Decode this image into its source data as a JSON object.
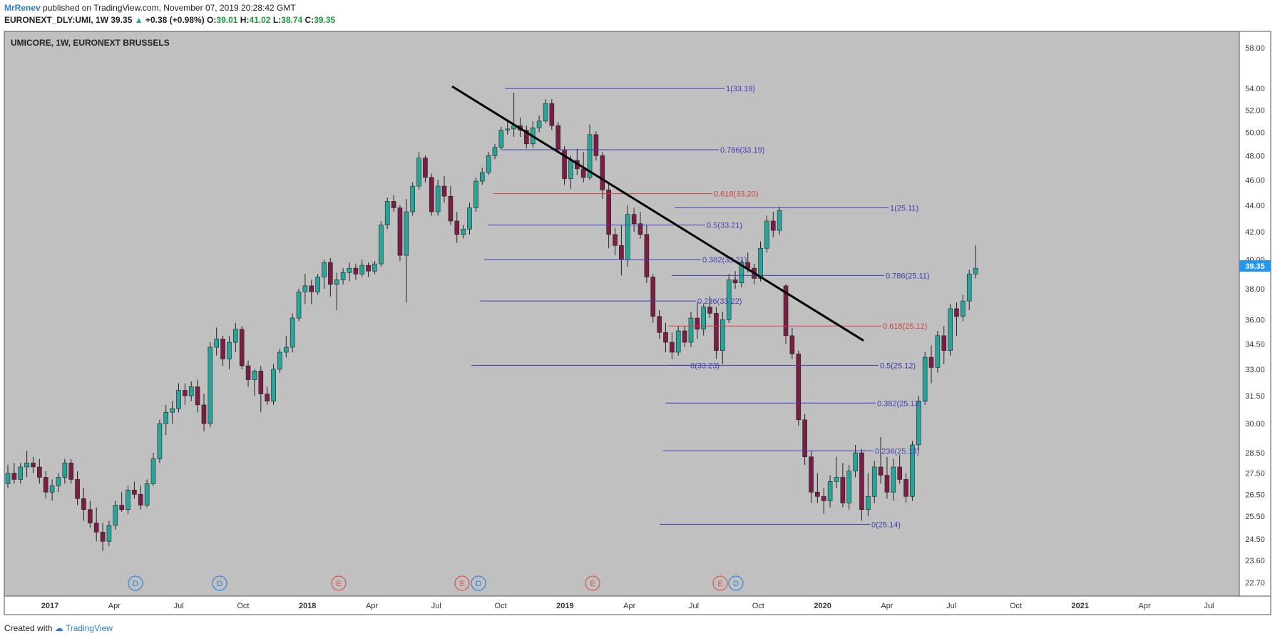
{
  "header": {
    "user": "MrRenev",
    "published": "published on TradingView.com, November 07, 2019 20:28:42 GMT",
    "symbol_line": "EURONEXT_DLY:UMI, 1W",
    "price": "39.35",
    "change": "+0.38 (+0.98%)",
    "o_label": "O:",
    "o": "39.01",
    "h_label": "H:",
    "h": "41.02",
    "l_label": "L:",
    "l": "38.74",
    "c_label": "C:",
    "c": "39.35"
  },
  "footer": {
    "created_with": "Created with",
    "brand": "TradingView"
  },
  "colors": {
    "bull": "#26a69a",
    "bear": "#7b1e46",
    "plot_bg": "#c0c0c0",
    "fib_line": "#3f3fb0",
    "fib_618": "#d04040",
    "last_price_tag": "#2196f3"
  },
  "chart_data": {
    "type": "candlestick",
    "title": "UMICORE, 1W, EURONEXT BRUSSELS",
    "y_ticks": [
      "58.00",
      "54.00",
      "52.00",
      "50.00",
      "48.00",
      "46.00",
      "44.00",
      "42.00",
      "40.00",
      "38.00",
      "36.00",
      "34.50",
      "33.00",
      "31.50",
      "30.00",
      "28.50",
      "27.50",
      "26.50",
      "25.50",
      "24.50",
      "23.60",
      "22.70"
    ],
    "y_scale": "log",
    "x_ticks": [
      "2017",
      "Apr",
      "Jul",
      "Oct",
      "2018",
      "Apr",
      "Jul",
      "Oct",
      "2019",
      "Apr",
      "Jul",
      "Oct",
      "2020",
      "Apr",
      "Jul",
      "Oct",
      "2021",
      "Apr",
      "Jul"
    ],
    "last_price": "39.35",
    "ohlc": [
      [
        27.0,
        27.9,
        26.8,
        27.5
      ],
      [
        27.5,
        28.0,
        27.0,
        27.2
      ],
      [
        27.2,
        28.0,
        27.0,
        27.8
      ],
      [
        27.8,
        28.6,
        27.3,
        28.0
      ],
      [
        28.0,
        28.3,
        27.5,
        27.8
      ],
      [
        27.8,
        28.2,
        27.0,
        27.3
      ],
      [
        27.3,
        27.6,
        26.3,
        26.6
      ],
      [
        26.6,
        27.2,
        26.2,
        26.9
      ],
      [
        26.9,
        27.5,
        26.6,
        27.3
      ],
      [
        27.3,
        28.2,
        27.0,
        28.0
      ],
      [
        28.0,
        28.2,
        27.0,
        27.2
      ],
      [
        27.2,
        27.6,
        26.0,
        26.3
      ],
      [
        26.3,
        26.8,
        25.3,
        25.8
      ],
      [
        25.8,
        26.2,
        25.0,
        25.2
      ],
      [
        25.2,
        25.9,
        24.4,
        24.8
      ],
      [
        24.8,
        25.2,
        24.0,
        24.4
      ],
      [
        24.4,
        25.3,
        24.2,
        25.1
      ],
      [
        25.1,
        26.2,
        24.9,
        26.0
      ],
      [
        26.0,
        26.6,
        25.7,
        25.8
      ],
      [
        25.8,
        26.9,
        25.6,
        26.7
      ],
      [
        26.7,
        27.1,
        26.3,
        26.5
      ],
      [
        26.5,
        26.9,
        25.8,
        26.0
      ],
      [
        26.0,
        27.2,
        25.9,
        27.0
      ],
      [
        27.0,
        28.5,
        26.9,
        28.2
      ],
      [
        28.2,
        30.2,
        28.0,
        30.0
      ],
      [
        30.0,
        31.0,
        29.4,
        30.6
      ],
      [
        30.6,
        31.2,
        30.0,
        30.8
      ],
      [
        30.8,
        32.2,
        30.6,
        31.8
      ],
      [
        31.8,
        32.2,
        31.0,
        31.5
      ],
      [
        31.5,
        32.3,
        31.2,
        32.0
      ],
      [
        32.0,
        32.4,
        30.6,
        31.0
      ],
      [
        31.0,
        31.6,
        29.6,
        30.0
      ],
      [
        30.0,
        34.6,
        29.8,
        34.3
      ],
      [
        34.3,
        35.5,
        33.8,
        34.8
      ],
      [
        34.8,
        35.0,
        33.2,
        33.6
      ],
      [
        33.6,
        35.0,
        33.0,
        34.6
      ],
      [
        34.6,
        35.8,
        34.0,
        35.4
      ],
      [
        35.4,
        35.6,
        33.0,
        33.2
      ],
      [
        33.2,
        33.5,
        32.0,
        32.4
      ],
      [
        32.4,
        33.0,
        31.5,
        32.9
      ],
      [
        32.9,
        33.2,
        30.6,
        31.6
      ],
      [
        31.6,
        32.0,
        31.0,
        31.2
      ],
      [
        31.2,
        33.3,
        31.0,
        33.0
      ],
      [
        33.0,
        34.2,
        32.8,
        34.0
      ],
      [
        34.0,
        35.0,
        33.7,
        34.3
      ],
      [
        34.3,
        36.4,
        34.0,
        36.1
      ],
      [
        36.1,
        38.0,
        35.9,
        37.8
      ],
      [
        37.8,
        39.0,
        37.0,
        38.2
      ],
      [
        38.2,
        38.6,
        37.0,
        37.8
      ],
      [
        37.8,
        39.0,
        37.6,
        38.8
      ],
      [
        38.8,
        40.0,
        38.0,
        39.8
      ],
      [
        39.8,
        40.1,
        37.5,
        38.3
      ],
      [
        38.3,
        39.1,
        36.6,
        38.6
      ],
      [
        38.6,
        39.4,
        38.3,
        39.1
      ],
      [
        39.1,
        39.8,
        38.5,
        39.4
      ],
      [
        39.4,
        39.7,
        38.6,
        39.0
      ],
      [
        39.0,
        40.0,
        38.8,
        39.6
      ],
      [
        39.6,
        39.8,
        38.8,
        39.2
      ],
      [
        39.2,
        39.9,
        39.0,
        39.7
      ],
      [
        39.7,
        42.8,
        39.5,
        42.5
      ],
      [
        42.5,
        44.6,
        42.2,
        44.3
      ],
      [
        44.3,
        44.8,
        43.5,
        43.8
      ],
      [
        43.8,
        44.0,
        39.9,
        40.3
      ],
      [
        40.3,
        44.5,
        37.1,
        43.5
      ],
      [
        43.5,
        45.8,
        43.2,
        45.5
      ],
      [
        45.5,
        48.3,
        45.2,
        47.8
      ],
      [
        47.8,
        48.0,
        45.8,
        46.2
      ],
      [
        46.2,
        46.5,
        43.2,
        43.5
      ],
      [
        43.5,
        46.0,
        43.2,
        45.5
      ],
      [
        45.5,
        46.3,
        44.2,
        44.7
      ],
      [
        44.7,
        45.5,
        42.5,
        42.8
      ],
      [
        42.8,
        43.5,
        41.2,
        41.8
      ],
      [
        41.8,
        42.5,
        41.5,
        42.2
      ],
      [
        42.2,
        44.2,
        41.8,
        43.8
      ],
      [
        43.8,
        46.2,
        43.5,
        45.9
      ],
      [
        45.9,
        47.0,
        45.6,
        46.6
      ],
      [
        46.6,
        48.3,
        46.4,
        48.0
      ],
      [
        48.0,
        49.0,
        47.7,
        48.7
      ],
      [
        48.7,
        50.5,
        48.5,
        50.2
      ],
      [
        50.2,
        51.0,
        49.8,
        50.3
      ],
      [
        50.3,
        53.6,
        49.6,
        50.6
      ],
      [
        50.6,
        51.3,
        49.6,
        50.2
      ],
      [
        50.2,
        50.6,
        48.6,
        49.0
      ],
      [
        49.0,
        51.0,
        48.7,
        50.4
      ],
      [
        50.4,
        51.5,
        50.0,
        51.0
      ],
      [
        51.0,
        53.0,
        50.8,
        52.6
      ],
      [
        52.6,
        53.0,
        50.2,
        50.6
      ],
      [
        50.6,
        50.9,
        48.2,
        48.5
      ],
      [
        48.5,
        48.8,
        45.6,
        46.1
      ],
      [
        46.1,
        48.0,
        45.3,
        47.6
      ],
      [
        47.6,
        48.6,
        46.4,
        46.9
      ],
      [
        46.9,
        48.3,
        45.8,
        46.2
      ],
      [
        46.2,
        50.7,
        46.0,
        49.8
      ],
      [
        49.8,
        50.1,
        47.6,
        48.0
      ],
      [
        48.0,
        48.3,
        44.5,
        45.2
      ],
      [
        45.2,
        45.8,
        40.8,
        41.8
      ],
      [
        41.8,
        42.3,
        40.3,
        41.0
      ],
      [
        41.0,
        42.5,
        38.9,
        40.0
      ],
      [
        40.0,
        44.0,
        39.5,
        43.3
      ],
      [
        43.3,
        43.8,
        42.0,
        42.6
      ],
      [
        42.6,
        43.5,
        41.5,
        41.8
      ],
      [
        41.8,
        42.5,
        38.4,
        38.8
      ],
      [
        38.8,
        39.0,
        35.8,
        36.2
      ],
      [
        36.2,
        36.6,
        34.8,
        35.2
      ],
      [
        35.2,
        35.8,
        34.0,
        34.6
      ],
      [
        34.6,
        35.2,
        33.6,
        34.0
      ],
      [
        34.0,
        35.6,
        33.8,
        35.3
      ],
      [
        35.3,
        35.6,
        34.3,
        34.6
      ],
      [
        34.6,
        36.5,
        34.3,
        36.1
      ],
      [
        36.1,
        37.1,
        34.8,
        35.4
      ],
      [
        35.4,
        37.0,
        35.0,
        36.8
      ],
      [
        36.8,
        37.5,
        36.1,
        36.4
      ],
      [
        36.4,
        36.8,
        33.6,
        34.1
      ],
      [
        34.1,
        36.5,
        33.3,
        36.0
      ],
      [
        36.0,
        39.0,
        35.8,
        38.6
      ],
      [
        38.6,
        39.2,
        38.0,
        38.4
      ],
      [
        38.4,
        40.0,
        38.1,
        39.8
      ],
      [
        39.8,
        40.5,
        39.1,
        39.4
      ],
      [
        39.4,
        39.7,
        38.3,
        38.7
      ],
      [
        38.7,
        41.3,
        38.5,
        40.8
      ],
      [
        40.8,
        43.2,
        40.5,
        42.8
      ],
      [
        42.8,
        43.5,
        41.6,
        42.1
      ],
      [
        42.1,
        43.9,
        41.8,
        43.6
      ],
      [
        38.2,
        38.3,
        34.5,
        35.0
      ],
      [
        35.0,
        35.5,
        33.6,
        33.9
      ],
      [
        33.9,
        34.1,
        29.9,
        30.2
      ],
      [
        30.2,
        30.5,
        27.9,
        28.3
      ],
      [
        28.3,
        28.6,
        26.1,
        26.6
      ],
      [
        26.6,
        27.5,
        26.1,
        26.4
      ],
      [
        26.4,
        26.8,
        25.6,
        26.2
      ],
      [
        26.2,
        27.4,
        25.9,
        27.1
      ],
      [
        27.1,
        28.3,
        26.8,
        27.3
      ],
      [
        27.3,
        28.0,
        25.9,
        26.1
      ],
      [
        26.1,
        27.9,
        25.8,
        27.6
      ],
      [
        27.6,
        28.9,
        27.3,
        28.5
      ],
      [
        28.5,
        28.7,
        25.3,
        25.8
      ],
      [
        25.8,
        27.5,
        25.5,
        26.4
      ],
      [
        26.4,
        28.1,
        26.1,
        27.8
      ],
      [
        27.8,
        29.3,
        27.0,
        27.4
      ],
      [
        27.4,
        28.3,
        26.3,
        26.6
      ],
      [
        26.6,
        28.2,
        26.2,
        27.8
      ],
      [
        27.8,
        28.4,
        27.0,
        27.2
      ],
      [
        27.2,
        27.5,
        26.1,
        26.4
      ],
      [
        26.4,
        29.1,
        26.2,
        28.9
      ],
      [
        28.9,
        31.5,
        28.6,
        31.2
      ],
      [
        31.2,
        34.0,
        31.0,
        33.7
      ],
      [
        33.7,
        34.4,
        32.2,
        33.1
      ],
      [
        33.1,
        35.3,
        32.8,
        35.0
      ],
      [
        35.0,
        35.6,
        33.3,
        34.1
      ],
      [
        34.1,
        37.0,
        33.8,
        36.7
      ],
      [
        36.7,
        37.1,
        35.0,
        36.2
      ],
      [
        36.2,
        37.6,
        35.9,
        37.2
      ],
      [
        37.2,
        39.3,
        36.6,
        39.0
      ],
      [
        39.0,
        41.0,
        38.7,
        39.4
      ]
    ],
    "fib_sets": [
      {
        "levels": [
          {
            "label": "1(33.19)",
            "price": 54.0
          },
          {
            "label": "0.786(33.19)",
            "price": 48.5
          },
          {
            "label": "0.618(33.20)",
            "price": 44.9
          },
          {
            "label": "0.5(33.21)",
            "price": 42.5
          },
          {
            "label": "0.382(33.21)",
            "price": 40.0
          },
          {
            "label": "0.236(33.22)",
            "price": 37.2
          },
          {
            "label": "0(33.23)",
            "price": 33.23
          }
        ]
      },
      {
        "levels": [
          {
            "label": "1(25.11)",
            "price": 43.8
          },
          {
            "label": "0.786(25.11)",
            "price": 38.9
          },
          {
            "label": "0.618(25.12)",
            "price": 35.6
          },
          {
            "label": "0.5(25.12)",
            "price": 33.23
          },
          {
            "label": "0.382(25.13)",
            "price": 31.1
          },
          {
            "label": "0.236(25.13)",
            "price": 28.6
          },
          {
            "label": "0(25.14)",
            "price": 25.14
          }
        ]
      }
    ],
    "trendline": {
      "from_price": 54.2,
      "to_price": 34.7
    },
    "events": [
      "D",
      "D",
      "E",
      "E",
      "D",
      "E",
      "E",
      "D"
    ]
  }
}
